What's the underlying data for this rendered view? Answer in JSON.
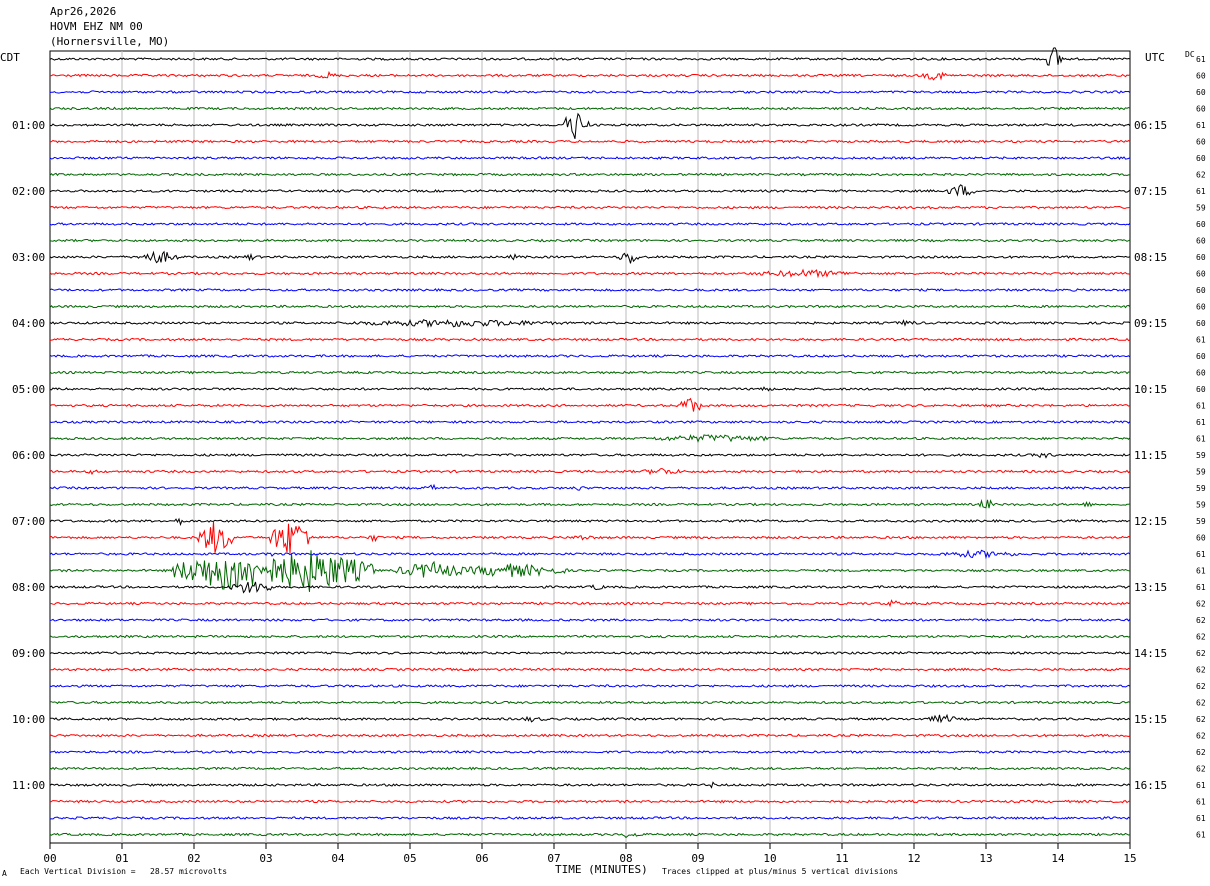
{
  "header": {
    "date": "Apr26,2026",
    "station": "HOVM EHZ NM 00",
    "location": "(Hornersville, MO)"
  },
  "left_tz": "CDT",
  "right_tz": "UTC",
  "dc_label": "DC",
  "footer": {
    "scale_text": "Each Vertical Division =   28.57 microvolts",
    "clip_text": "Traces clipped at plus/minus 5 vertical divisions",
    "corner_mark": "A"
  },
  "colors": {
    "black": "#000000",
    "red": "#ff0000",
    "blue": "#0000ff",
    "green": "#006600",
    "grid": "#bbbbbb"
  },
  "chart_data": {
    "type": "line",
    "title": "",
    "xlabel": "TIME (MINUTES)",
    "ylabel": "",
    "xlim": [
      0,
      15
    ],
    "x_ticks": [
      "00",
      "01",
      "02",
      "03",
      "04",
      "05",
      "06",
      "07",
      "08",
      "09",
      "10",
      "11",
      "12",
      "13",
      "14",
      "15"
    ],
    "left_hour_labels": [
      "01:00",
      "02:00",
      "03:00",
      "04:00",
      "05:00",
      "06:00",
      "07:00",
      "08:00",
      "09:00",
      "10:00",
      "11:00"
    ],
    "right_hour_labels": [
      "06:15",
      "07:15",
      "08:15",
      "09:15",
      "10:15",
      "11:15",
      "12:15",
      "13:15",
      "14:15",
      "15:15",
      "16:15"
    ],
    "trace_count": 48,
    "trace_color_cycle": [
      "black",
      "red",
      "blue",
      "green"
    ],
    "dc_values": [
      "61",
      "60",
      "60",
      "60",
      "61",
      "60",
      "60",
      "62",
      "61",
      "59",
      "60",
      "60",
      "60",
      "60",
      "60",
      "60",
      "60",
      "61",
      "60",
      "60",
      "60",
      "61",
      "61",
      "61",
      "59",
      "59",
      "59",
      "59",
      "59",
      "60",
      "61",
      "61",
      "61",
      "62",
      "62",
      "62",
      "62",
      "62",
      "62",
      "62",
      "62",
      "62",
      "62",
      "62",
      "61",
      "61",
      "61",
      "61"
    ],
    "events": [
      {
        "trace": 0,
        "minute": 13.95,
        "amp": 14,
        "dur": 0.12
      },
      {
        "trace": 1,
        "minute": 3.85,
        "amp": 4,
        "dur": 0.15
      },
      {
        "trace": 1,
        "minute": 12.3,
        "amp": 5,
        "dur": 0.2
      },
      {
        "trace": 4,
        "minute": 7.3,
        "amp": 16,
        "dur": 0.18
      },
      {
        "trace": 8,
        "minute": 12.65,
        "amp": 7,
        "dur": 0.2
      },
      {
        "trace": 12,
        "minute": 1.5,
        "amp": 7,
        "dur": 0.3
      },
      {
        "trace": 12,
        "minute": 2.8,
        "amp": 4,
        "dur": 0.1
      },
      {
        "trace": 12,
        "minute": 6.45,
        "amp": 3,
        "dur": 0.1
      },
      {
        "trace": 12,
        "minute": 8.05,
        "amp": 8,
        "dur": 0.15
      },
      {
        "trace": 13,
        "minute": 10.5,
        "amp": 4,
        "dur": 0.8
      },
      {
        "trace": 16,
        "minute": 5.6,
        "amp": 4,
        "dur": 1.6
      },
      {
        "trace": 16,
        "minute": 11.9,
        "amp": 3,
        "dur": 0.2
      },
      {
        "trace": 20,
        "minute": 9.9,
        "amp": 3,
        "dur": 0.15
      },
      {
        "trace": 21,
        "minute": 8.9,
        "amp": 10,
        "dur": 0.15
      },
      {
        "trace": 23,
        "minute": 9.2,
        "amp": 4,
        "dur": 1.0
      },
      {
        "trace": 24,
        "minute": 13.8,
        "amp": 3,
        "dur": 0.2
      },
      {
        "trace": 25,
        "minute": 8.5,
        "amp": 4,
        "dur": 0.3
      },
      {
        "trace": 25,
        "minute": 0.6,
        "amp": 3,
        "dur": 0.1
      },
      {
        "trace": 26,
        "minute": 5.3,
        "amp": 4,
        "dur": 0.1
      },
      {
        "trace": 26,
        "minute": 7.35,
        "amp": 3,
        "dur": 0.1
      },
      {
        "trace": 27,
        "minute": 13.0,
        "amp": 7,
        "dur": 0.1
      },
      {
        "trace": 27,
        "minute": 14.4,
        "amp": 3,
        "dur": 0.1
      },
      {
        "trace": 28,
        "minute": 1.8,
        "amp": 4,
        "dur": 0.1
      },
      {
        "trace": 29,
        "minute": 2.3,
        "amp": 18,
        "dur": 0.25
      },
      {
        "trace": 29,
        "minute": 3.35,
        "amp": 20,
        "dur": 0.3
      },
      {
        "trace": 29,
        "minute": 4.5,
        "amp": 4,
        "dur": 0.1
      },
      {
        "trace": 29,
        "minute": 7.4,
        "amp": 3,
        "dur": 0.2
      },
      {
        "trace": 30,
        "minute": 3.1,
        "amp": 3,
        "dur": 0.1
      },
      {
        "trace": 30,
        "minute": 12.9,
        "amp": 4,
        "dur": 0.6
      },
      {
        "trace": 31,
        "minute": 2.5,
        "amp": 22,
        "dur": 0.8
      },
      {
        "trace": 31,
        "minute": 3.6,
        "amp": 22,
        "dur": 0.9
      },
      {
        "trace": 31,
        "minute": 5.3,
        "amp": 9,
        "dur": 0.5
      },
      {
        "trace": 31,
        "minute": 6.4,
        "amp": 7,
        "dur": 0.8
      },
      {
        "trace": 32,
        "minute": 2.8,
        "amp": 8,
        "dur": 0.3
      },
      {
        "trace": 32,
        "minute": 3.0,
        "amp": 6,
        "dur": 0.1
      },
      {
        "trace": 32,
        "minute": 7.6,
        "amp": 4,
        "dur": 0.1
      },
      {
        "trace": 33,
        "minute": 11.7,
        "amp": 4,
        "dur": 0.1
      },
      {
        "trace": 40,
        "minute": 12.4,
        "amp": 5,
        "dur": 0.2
      },
      {
        "trace": 40,
        "minute": 6.7,
        "amp": 3,
        "dur": 0.2
      },
      {
        "trace": 44,
        "minute": 9.2,
        "amp": 3,
        "dur": 0.1
      },
      {
        "trace": 47,
        "minute": 8.05,
        "amp": 4,
        "dur": 0.15
      }
    ]
  }
}
